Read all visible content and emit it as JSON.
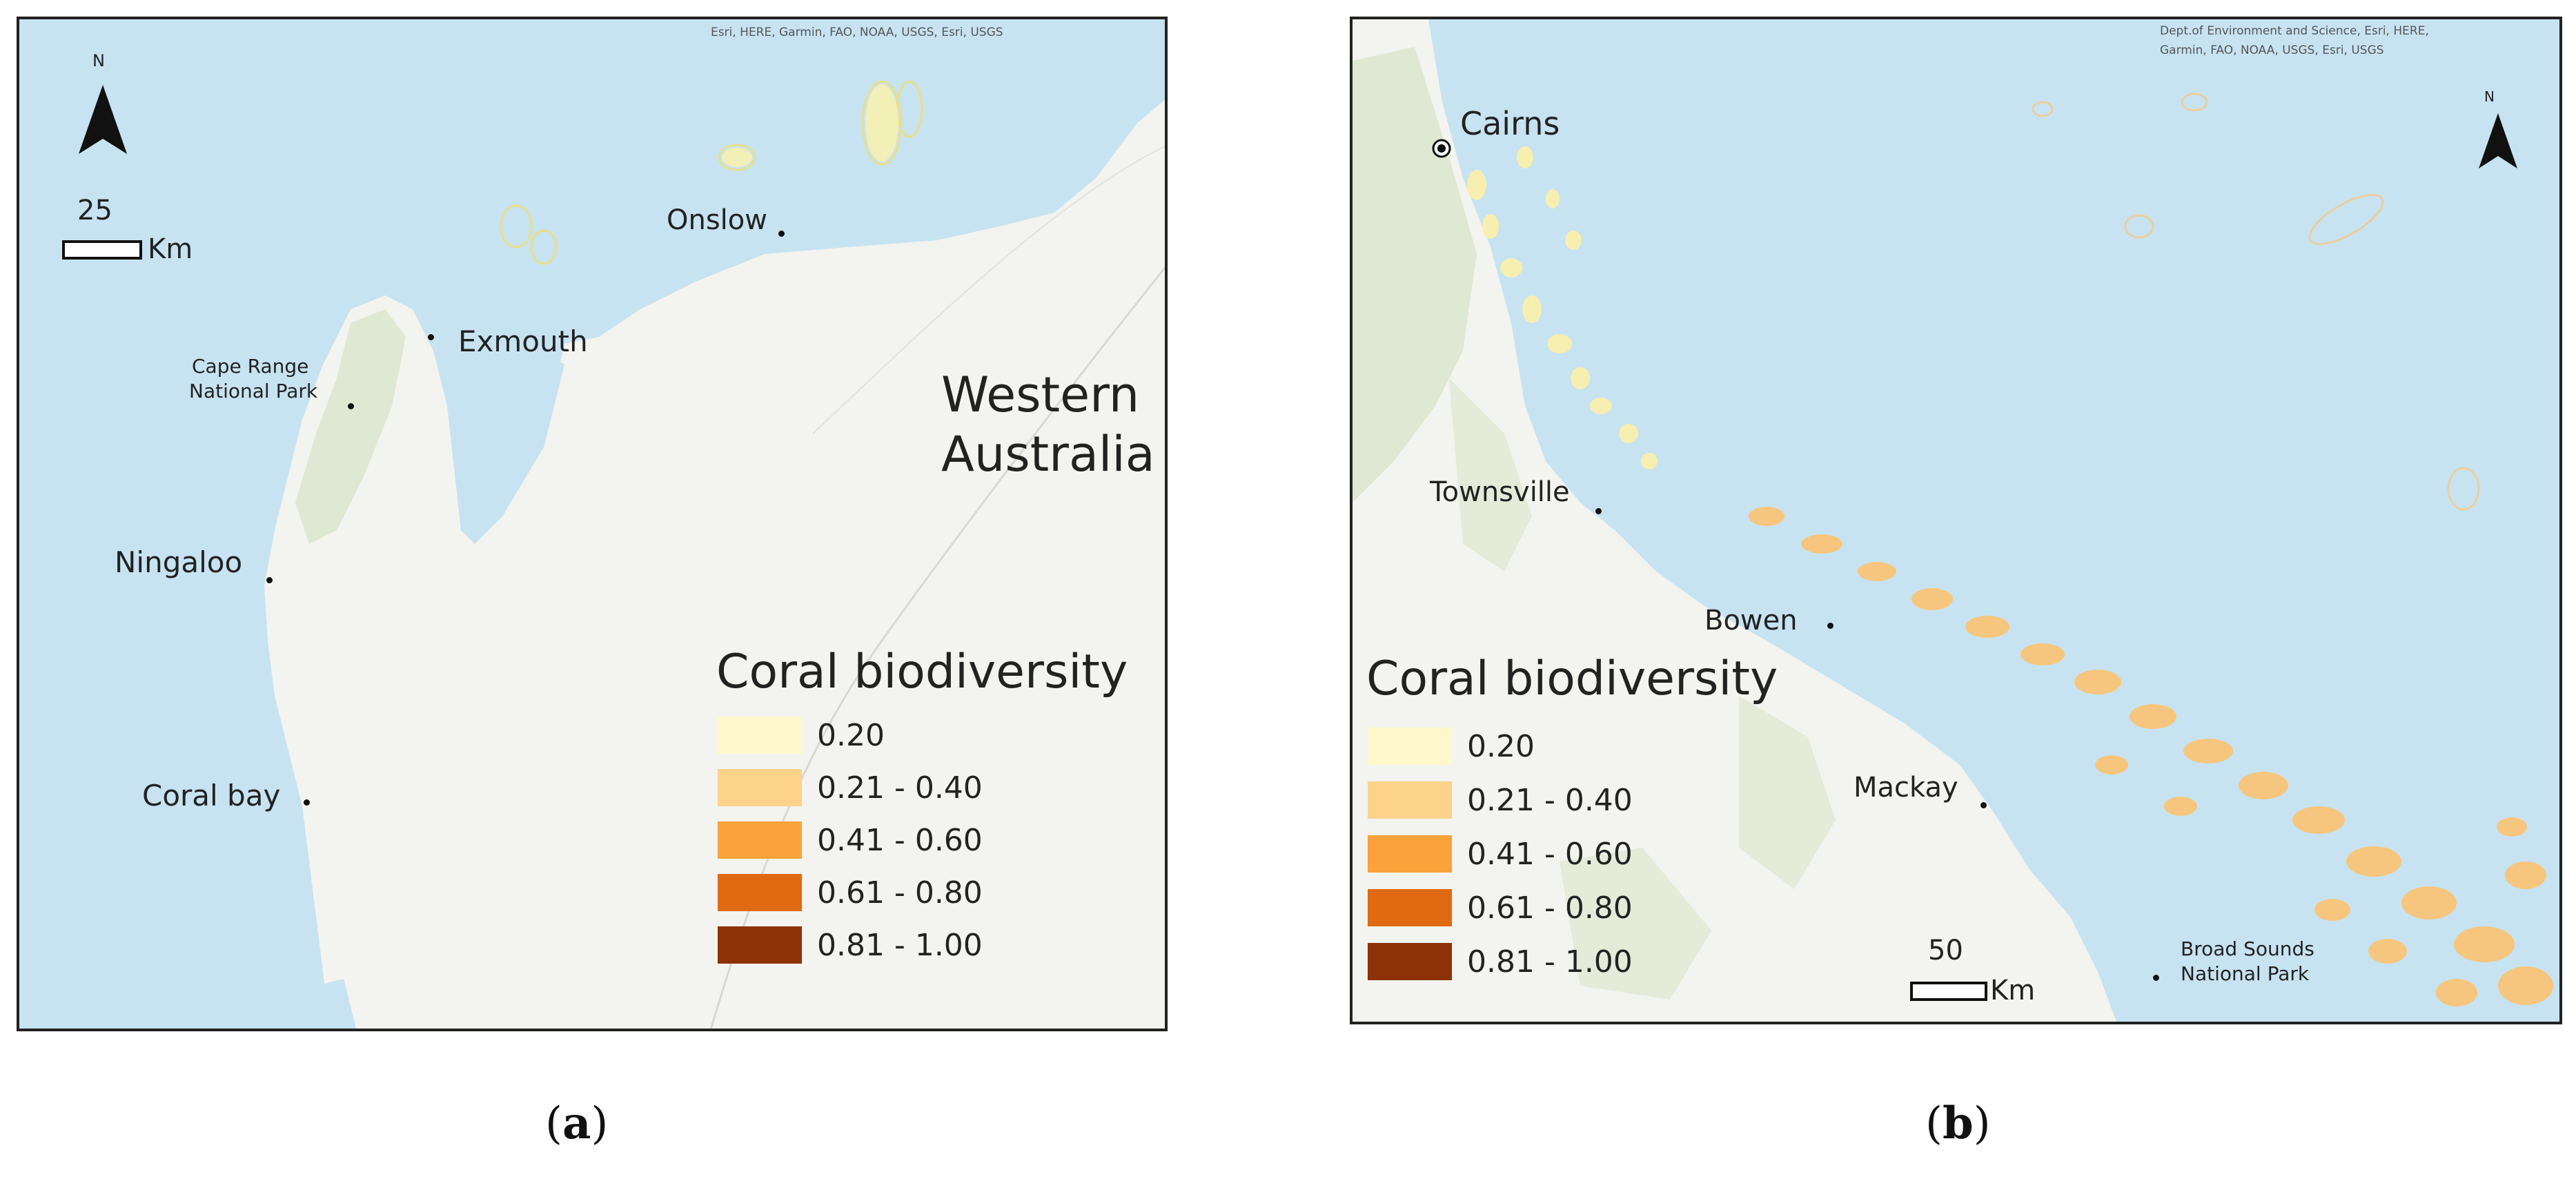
{
  "panel_a": {
    "attribution": "Esri, HERE, Garmin, FAO, NOAA, USGS, Esri, USGS",
    "north_label": "N",
    "scale": {
      "value": "25",
      "unit": "Km"
    },
    "places": {
      "onslow": "Onslow",
      "exmouth": "Exmouth",
      "cape_range": [
        "Cape Range",
        "National Park"
      ],
      "ningaloo": "Ningaloo",
      "coral_bay": "Coral bay"
    },
    "region": [
      "Western",
      "Australia"
    ],
    "legend": {
      "title": "Coral biodiversity",
      "items": [
        {
          "label": "0.20",
          "color": "#fff8cc"
        },
        {
          "label": "0.21 - 0.40",
          "color": "#fdd28a"
        },
        {
          "label": "0.41 - 0.60",
          "color": "#f9a33a"
        },
        {
          "label": "0.61 - 0.80",
          "color": "#e06a12"
        },
        {
          "label": "0.81 - 1.00",
          "color": "#8c3206"
        }
      ]
    }
  },
  "panel_b": {
    "attribution": [
      "Dept.of Environment and Science, Esri, HERE,",
      "Garmin, FAO, NOAA, USGS, Esri, USGS"
    ],
    "north_label": "N",
    "scale": {
      "value": "50",
      "unit": "Km"
    },
    "places": {
      "cairns": "Cairns",
      "townsville": "Townsville",
      "bowen": "Bowen",
      "mackay": "Mackay",
      "broad_sounds": [
        "Broad Sounds",
        "National Park"
      ]
    },
    "legend": {
      "title": "Coral biodiversity",
      "items": [
        {
          "label": "0.20",
          "color": "#fff8cc"
        },
        {
          "label": "0.21 - 0.40",
          "color": "#fdd28a"
        },
        {
          "label": "0.41 - 0.60",
          "color": "#f9a33a"
        },
        {
          "label": "0.61 - 0.80",
          "color": "#e06a12"
        },
        {
          "label": "0.81 - 1.00",
          "color": "#8c3206"
        }
      ]
    }
  },
  "captions": {
    "a": "a",
    "b": "b"
  },
  "colors": {
    "ocean": "#c7e3f1",
    "land": "#f3f3ef",
    "park": "#dfe8d2",
    "reef_pale": "#f6efb0",
    "reef_orange": "#f6c67e"
  }
}
